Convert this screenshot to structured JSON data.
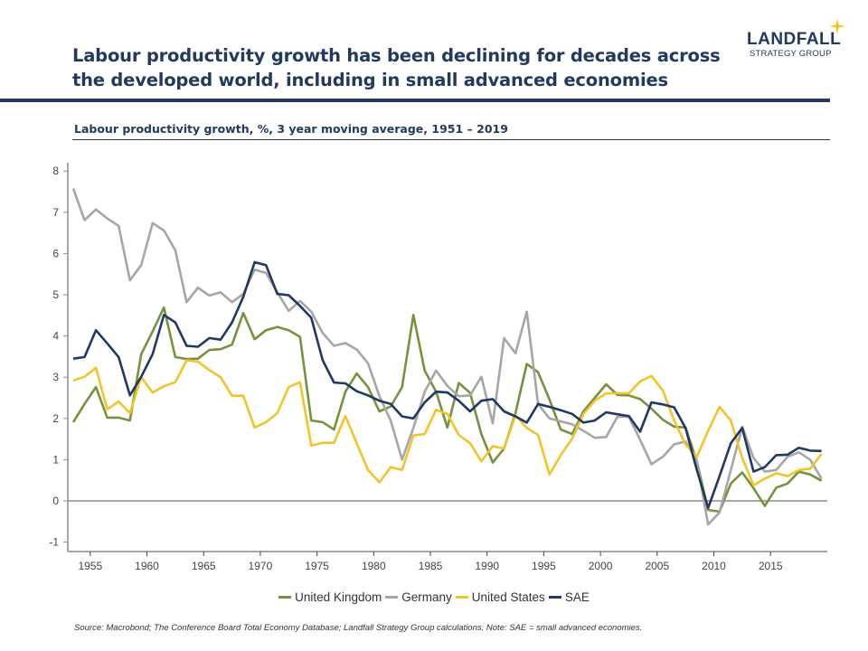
{
  "header": {
    "title": "Labour productivity growth has been declining for decades across the developed world, including in small advanced economies",
    "logo_line1": "LANDFALL",
    "logo_line2": "STRATEGY GROUP"
  },
  "footer": {
    "source": "Source: Macrobond;  The Conference Board Total Economy Database; Landfall Strategy Group calculations. Note: SAE = small advanced economies."
  },
  "colors": {
    "brand": "#23395d",
    "accent_star": "#f0c419"
  },
  "chart_data": {
    "type": "line",
    "title": "Labour productivity growth, %, 3 year moving average, 1951 – 2019",
    "xlabel": "",
    "ylabel": "",
    "ylim": [
      -1,
      8
    ],
    "yticks": [
      "-1",
      "0",
      "1",
      "2",
      "3",
      "4",
      "5",
      "6",
      "7",
      "8"
    ],
    "xticks": [
      "1955",
      "1960",
      "1965",
      "1970",
      "1975",
      "1980",
      "1985",
      "1990",
      "1995",
      "2000",
      "2005",
      "2010",
      "2015"
    ],
    "x_start": 1953,
    "x_end": 2019,
    "grid": false,
    "legend": "bottom",
    "series": [
      {
        "name": "United Kingdom",
        "color": "#76923c",
        "values": [
          1.91,
          2.35,
          2.76,
          2.02,
          2.02,
          1.95,
          3.56,
          4.11,
          4.69,
          3.49,
          3.44,
          3.45,
          3.66,
          3.68,
          3.79,
          4.56,
          3.92,
          4.14,
          4.22,
          4.14,
          3.98,
          1.95,
          1.91,
          1.73,
          2.65,
          3.09,
          2.76,
          2.17,
          2.29,
          2.76,
          4.51,
          3.16,
          2.65,
          1.78,
          2.86,
          2.62,
          1.62,
          0.93,
          1.27,
          2.13,
          3.32,
          3.12,
          2.46,
          1.73,
          1.62,
          2.17,
          2.5,
          2.83,
          2.57,
          2.56,
          2.47,
          2.24,
          1.97,
          1.8,
          1.78,
          0.96,
          -0.22,
          -0.26,
          0.42,
          0.69,
          0.31,
          -0.12,
          0.32,
          0.42,
          0.71,
          0.64,
          0.49
        ]
      },
      {
        "name": "Germany",
        "color": "#a6a6a6",
        "values": [
          7.58,
          6.81,
          7.07,
          6.85,
          6.67,
          5.35,
          5.72,
          6.74,
          6.56,
          6.08,
          4.82,
          5.17,
          4.98,
          5.06,
          4.82,
          5.02,
          5.61,
          5.53,
          5.06,
          4.61,
          4.85,
          4.59,
          4.07,
          3.76,
          3.83,
          3.67,
          3.34,
          2.54,
          1.95,
          1.0,
          1.77,
          2.65,
          3.16,
          2.79,
          2.54,
          2.56,
          3.01,
          1.88,
          3.95,
          3.58,
          4.59,
          2.35,
          2.0,
          1.93,
          1.86,
          1.7,
          1.53,
          1.55,
          2.04,
          2.04,
          1.48,
          0.89,
          1.07,
          1.37,
          1.44,
          0.96,
          -0.57,
          -0.28,
          0.75,
          1.8,
          1.04,
          0.71,
          0.75,
          1.07,
          1.18,
          1.0,
          0.54
        ]
      },
      {
        "name": "United States",
        "color": "#f2c42a",
        "values": [
          2.92,
          3.01,
          3.23,
          2.22,
          2.41,
          2.13,
          3.0,
          2.63,
          2.78,
          2.88,
          3.41,
          3.38,
          3.17,
          3.0,
          2.55,
          2.55,
          1.78,
          1.91,
          2.13,
          2.76,
          2.88,
          1.34,
          1.41,
          1.41,
          2.06,
          1.4,
          0.75,
          0.45,
          0.82,
          0.75,
          1.59,
          1.62,
          2.21,
          2.11,
          1.6,
          1.4,
          0.96,
          1.33,
          1.27,
          2.08,
          1.77,
          1.6,
          0.64,
          1.11,
          1.51,
          2.11,
          2.43,
          2.61,
          2.61,
          2.61,
          2.9,
          3.03,
          2.68,
          1.95,
          1.37,
          1.07,
          1.7,
          2.28,
          1.95,
          1.04,
          0.38,
          0.54,
          0.67,
          0.6,
          0.75,
          0.78,
          1.14
        ]
      },
      {
        "name": "SAE",
        "color": "#203864",
        "values": [
          3.45,
          3.49,
          4.14,
          3.82,
          3.49,
          2.56,
          3.01,
          3.56,
          4.51,
          4.33,
          3.76,
          3.74,
          3.95,
          3.91,
          4.33,
          4.95,
          5.79,
          5.72,
          5.02,
          4.99,
          4.73,
          4.44,
          3.41,
          2.87,
          2.85,
          2.66,
          2.56,
          2.43,
          2.35,
          2.05,
          2.0,
          2.39,
          2.65,
          2.63,
          2.43,
          2.17,
          2.43,
          2.47,
          2.17,
          2.05,
          1.9,
          2.35,
          2.28,
          2.2,
          2.11,
          1.9,
          1.95,
          2.15,
          2.1,
          2.06,
          1.68,
          2.39,
          2.34,
          2.27,
          1.77,
          0.75,
          -0.17,
          0.6,
          1.4,
          1.77,
          0.71,
          0.82,
          1.11,
          1.12,
          1.29,
          1.22,
          1.21
        ]
      }
    ]
  }
}
